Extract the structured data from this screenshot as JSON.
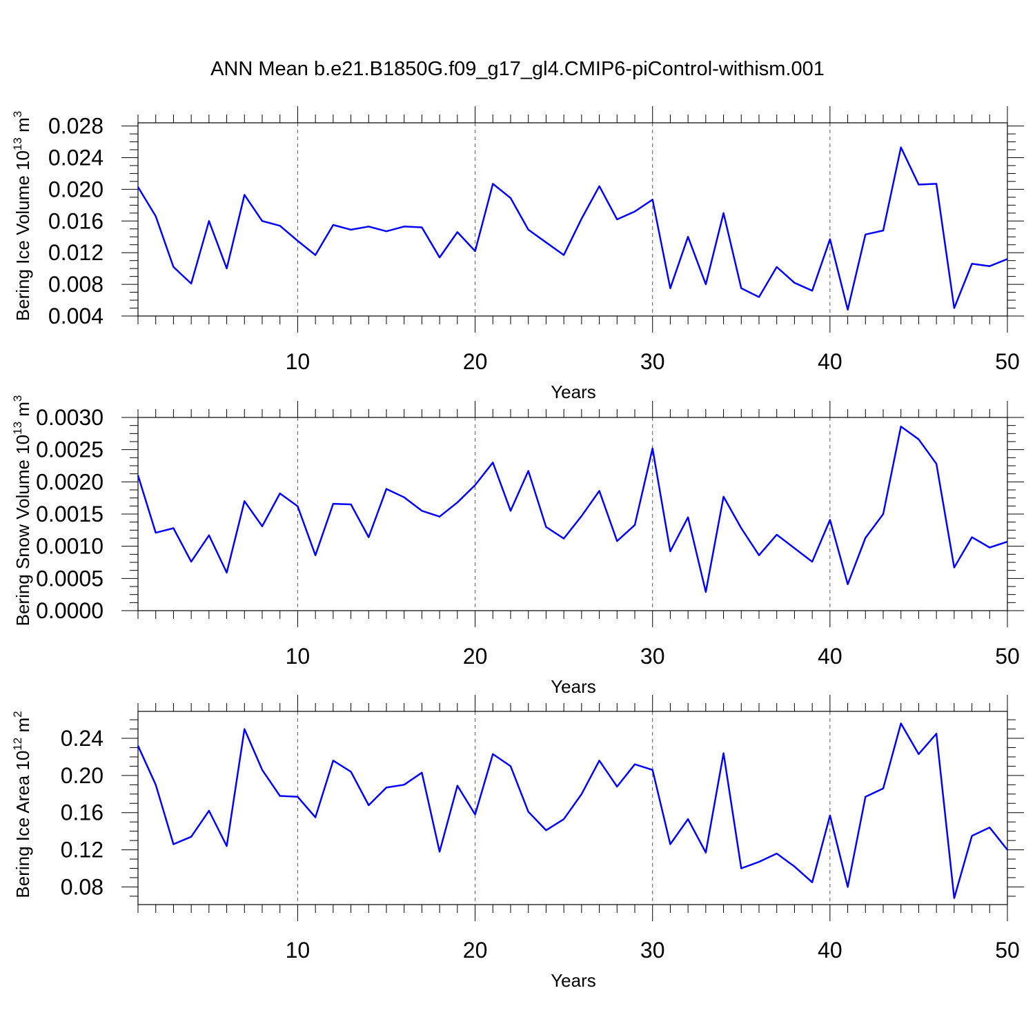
{
  "title": "ANN Mean b.e21.B1850G.f09_g17_gl4.CMIP6-piControl-withism.001",
  "chart_data": [
    {
      "type": "line",
      "ylabel": "Bering Ice Volume 10",
      "ylabel_exp": "13",
      "ylabel_unit": " m",
      "ylabel_unit_exp": "3",
      "xlabel": "Years",
      "xlim": [
        1,
        50
      ],
      "ylim": [
        0.004,
        0.0284
      ],
      "xticks": [
        10,
        20,
        30,
        40,
        50
      ],
      "yticks": [
        0.004,
        0.008,
        0.012,
        0.016,
        0.02,
        0.024,
        0.028
      ],
      "ytick_labels": [
        "0.004",
        "0.008",
        "0.012",
        "0.016",
        "0.020",
        "0.024",
        "0.028"
      ],
      "grid": "vertical-dashed",
      "series": [
        {
          "color": "#0000ff",
          "x": [
            1,
            2,
            3,
            4,
            5,
            6,
            7,
            8,
            9,
            10,
            11,
            12,
            13,
            14,
            15,
            16,
            17,
            18,
            19,
            20,
            21,
            22,
            23,
            24,
            25,
            26,
            27,
            28,
            29,
            30,
            31,
            32,
            33,
            34,
            35,
            36,
            37,
            38,
            39,
            40,
            41,
            42,
            43,
            44,
            45,
            46,
            47,
            48,
            49,
            50
          ],
          "y": [
            0.0203,
            0.0166,
            0.0102,
            0.0081,
            0.016,
            0.01,
            0.0193,
            0.016,
            0.0154,
            0.0135,
            0.0117,
            0.0155,
            0.0149,
            0.0153,
            0.0147,
            0.0153,
            0.0152,
            0.0114,
            0.0146,
            0.0122,
            0.0207,
            0.0189,
            0.0149,
            0.0133,
            0.0117,
            0.0163,
            0.0204,
            0.0162,
            0.0172,
            0.0187,
            0.0075,
            0.014,
            0.008,
            0.017,
            0.0075,
            0.0064,
            0.0102,
            0.0082,
            0.0072,
            0.0137,
            0.0048,
            0.0143,
            0.0148,
            0.0253,
            0.0206,
            0.0207,
            0.005,
            0.0106,
            0.0103,
            0.0112
          ]
        }
      ]
    },
    {
      "type": "line",
      "ylabel": "Bering Snow Volume 10",
      "ylabel_exp": "13",
      "ylabel_unit": " m",
      "ylabel_unit_exp": "3",
      "xlabel": "Years",
      "xlim": [
        1,
        50
      ],
      "ylim": [
        0.0,
        0.003
      ],
      "xticks": [
        10,
        20,
        30,
        40,
        50
      ],
      "yticks": [
        0.0,
        0.0005,
        0.001,
        0.0015,
        0.002,
        0.0025,
        0.003
      ],
      "ytick_labels": [
        "0.0000",
        "0.0005",
        "0.0010",
        "0.0015",
        "0.0020",
        "0.0025",
        "0.0030"
      ],
      "grid": "vertical-dashed",
      "series": [
        {
          "color": "#0000ff",
          "x": [
            1,
            2,
            3,
            4,
            5,
            6,
            7,
            8,
            9,
            10,
            11,
            12,
            13,
            14,
            15,
            16,
            17,
            18,
            19,
            20,
            21,
            22,
            23,
            24,
            25,
            26,
            27,
            28,
            29,
            30,
            31,
            32,
            33,
            34,
            35,
            36,
            37,
            38,
            39,
            40,
            41,
            42,
            43,
            44,
            45,
            46,
            47,
            48,
            49,
            50
          ],
          "y": [
            0.0021,
            0.00121,
            0.00128,
            0.00076,
            0.00117,
            0.00059,
            0.0017,
            0.00131,
            0.00182,
            0.00162,
            0.00086,
            0.00166,
            0.00165,
            0.00114,
            0.00189,
            0.00176,
            0.00155,
            0.00146,
            0.00168,
            0.00195,
            0.0023,
            0.00155,
            0.00217,
            0.0013,
            0.00112,
            0.00147,
            0.00186,
            0.00108,
            0.00133,
            0.00252,
            0.00092,
            0.00145,
            0.00029,
            0.00177,
            0.00128,
            0.00086,
            0.00118,
            0.00097,
            0.00076,
            0.00141,
            0.00041,
            0.00113,
            0.0015,
            0.00286,
            0.00266,
            0.00228,
            0.00067,
            0.00114,
            0.00098,
            0.00107
          ]
        }
      ]
    },
    {
      "type": "line",
      "ylabel": "Bering Ice Area 10",
      "ylabel_exp": "12",
      "ylabel_unit": " m",
      "ylabel_unit_exp": "2",
      "xlabel": "Years",
      "xlim": [
        1,
        50
      ],
      "ylim": [
        0.061,
        0.269
      ],
      "xticks": [
        10,
        20,
        30,
        40,
        50
      ],
      "yticks": [
        0.08,
        0.12,
        0.16,
        0.2,
        0.24
      ],
      "ytick_labels": [
        "0.08",
        "0.12",
        "0.16",
        "0.20",
        "0.24"
      ],
      "grid": "vertical-dashed",
      "series": [
        {
          "color": "#0000ff",
          "x": [
            1,
            2,
            3,
            4,
            5,
            6,
            7,
            8,
            9,
            10,
            11,
            12,
            13,
            14,
            15,
            16,
            17,
            18,
            19,
            20,
            21,
            22,
            23,
            24,
            25,
            26,
            27,
            28,
            29,
            30,
            31,
            32,
            33,
            34,
            35,
            36,
            37,
            38,
            39,
            40,
            41,
            42,
            43,
            44,
            45,
            46,
            47,
            48,
            49,
            50
          ],
          "y": [
            0.232,
            0.19,
            0.126,
            0.134,
            0.162,
            0.124,
            0.25,
            0.206,
            0.178,
            0.177,
            0.155,
            0.216,
            0.204,
            0.168,
            0.187,
            0.19,
            0.203,
            0.118,
            0.189,
            0.158,
            0.223,
            0.21,
            0.161,
            0.141,
            0.153,
            0.18,
            0.216,
            0.188,
            0.212,
            0.206,
            0.126,
            0.153,
            0.117,
            0.224,
            0.1,
            0.107,
            0.116,
            0.102,
            0.085,
            0.157,
            0.08,
            0.177,
            0.186,
            0.256,
            0.223,
            0.245,
            0.068,
            0.135,
            0.144,
            0.12
          ]
        }
      ]
    }
  ]
}
